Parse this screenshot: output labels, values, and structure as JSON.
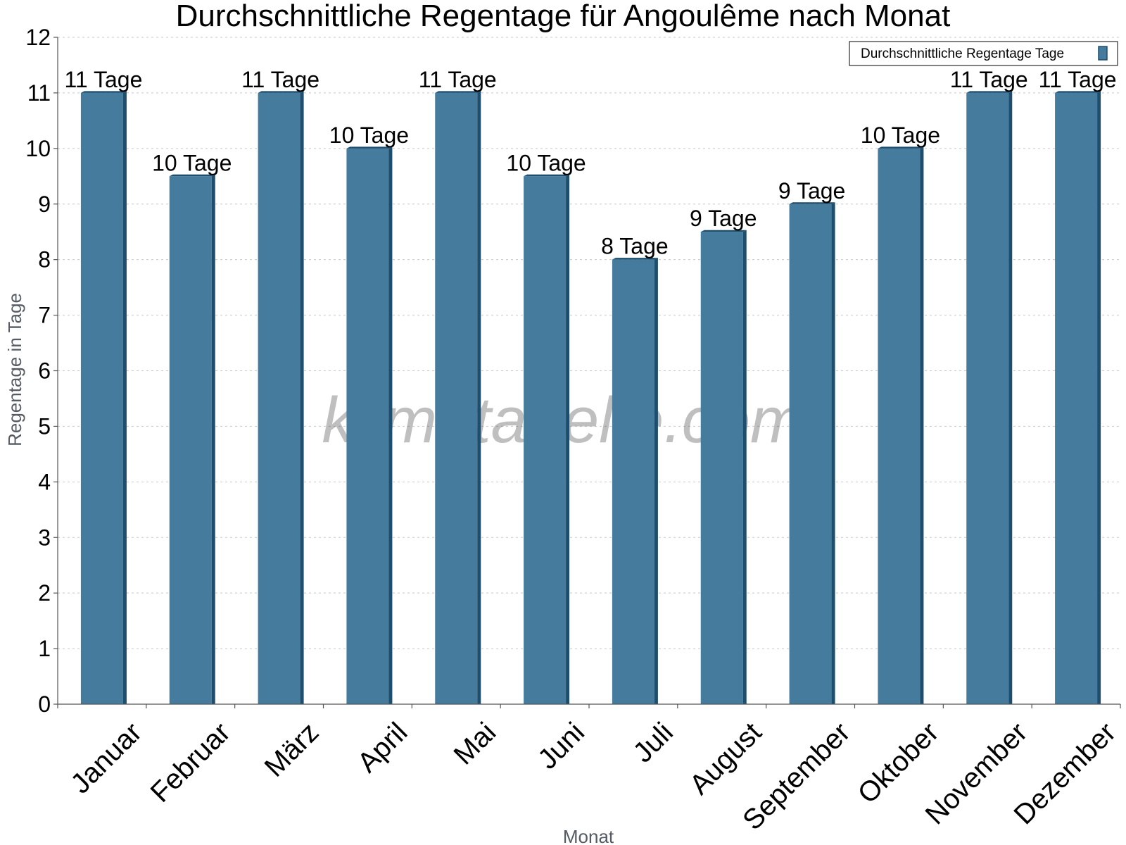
{
  "chart_data": {
    "type": "bar",
    "title": "Durchschnittliche Regentage für Angoulême nach Monat",
    "xlabel": "Monat",
    "ylabel": "Regentage in Tage",
    "ylim": [
      0,
      12
    ],
    "yticks": [
      0,
      1,
      2,
      3,
      4,
      5,
      6,
      7,
      8,
      9,
      10,
      11,
      12
    ],
    "grid": true,
    "legend_position": "top-right",
    "categories": [
      "Januar",
      "Februar",
      "März",
      "April",
      "Mai",
      "Juni",
      "Juli",
      "August",
      "September",
      "Oktober",
      "November",
      "Dezember"
    ],
    "series": [
      {
        "name": "Durchschnittliche Regentage Tage",
        "values": [
          11,
          9.5,
          11,
          10,
          11,
          9.5,
          8,
          8.5,
          9,
          10,
          11,
          11
        ],
        "labels": [
          "11 Tage",
          "10 Tage",
          "11 Tage",
          "10 Tage",
          "11 Tage",
          "10 Tage",
          "8 Tage",
          "9 Tage",
          "9 Tage",
          "10 Tage",
          "11 Tage",
          "11 Tage"
        ],
        "color": "#457b9d",
        "shade_color": "#1d4e6e"
      }
    ],
    "watermark": "klimatabelle.com"
  }
}
